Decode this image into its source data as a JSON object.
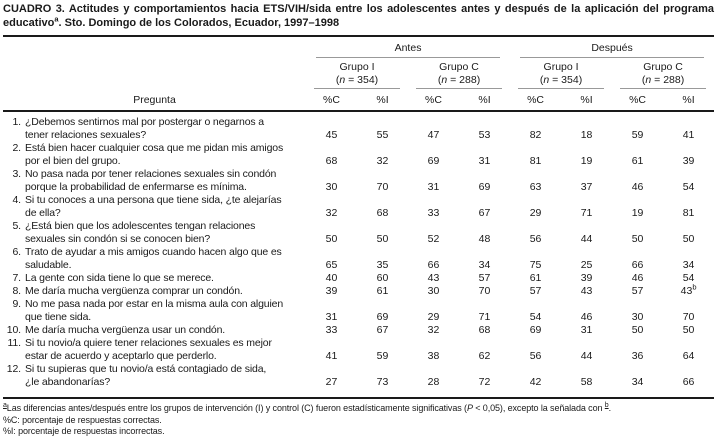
{
  "title": {
    "line1": "CUADRO 3. Actitudes y comportamientos hacia ETS/VIH/sida entre los adolescentes antes y después de la aplicación del programa",
    "line2_pre": "educativo",
    "line2_sup": "a",
    "line2_rest": ". Sto. Domingo de los Colorados, Ecuador, 1997–1998"
  },
  "table": {
    "question_header": "Pregunta",
    "measure_labels": [
      "%C",
      "%I"
    ],
    "period_groups": [
      {
        "label": "Antes",
        "groups": [
          {
            "name": "Grupo I",
            "n_pre": "(",
            "n_var": "n",
            "n_post": " = 354)"
          },
          {
            "name": "Grupo C",
            "n_pre": "(",
            "n_var": "n",
            "n_post": " = 288)"
          }
        ]
      },
      {
        "label": "Después",
        "groups": [
          {
            "name": "Grupo I",
            "n_pre": "(",
            "n_var": "n",
            "n_post": " = 354)"
          },
          {
            "name": "Grupo C",
            "n_pre": "(",
            "n_var": "n",
            "n_post": " = 288)"
          }
        ]
      }
    ],
    "rows": [
      {
        "num": "1.",
        "lines": [
          "¿Debemos sentirnos mal por postergar o negarnos a",
          "tener relaciones sexuales?"
        ],
        "values": [
          "45",
          "55",
          "47",
          "53",
          "82",
          "18",
          "59",
          "41"
        ]
      },
      {
        "num": "2.",
        "lines": [
          "Está bien hacer cualquier cosa que me pidan mis amigos",
          "por el bien del grupo."
        ],
        "values": [
          "68",
          "32",
          "69",
          "31",
          "81",
          "19",
          "61",
          "39"
        ]
      },
      {
        "num": "3.",
        "lines": [
          "No pasa nada por tener relaciones sexuales sin condón",
          "porque la probabilidad de enfermarse es mínima."
        ],
        "values": [
          "30",
          "70",
          "31",
          "69",
          "63",
          "37",
          "46",
          "54"
        ]
      },
      {
        "num": "4.",
        "lines": [
          "Si tu conoces a una persona que tiene sida, ¿te alejarías",
          "de ella?"
        ],
        "values": [
          "32",
          "68",
          "33",
          "67",
          "29",
          "71",
          "19",
          "81"
        ]
      },
      {
        "num": "5.",
        "lines": [
          "¿Está bien que los adolescentes tengan relaciones",
          "sexuales sin condón si se conocen bien?"
        ],
        "values": [
          "50",
          "50",
          "52",
          "48",
          "56",
          "44",
          "50",
          "50"
        ]
      },
      {
        "num": "6.",
        "lines": [
          "Trato de ayudar a mis amigos cuando hacen algo que es",
          "saludable."
        ],
        "values": [
          "65",
          "35",
          "66",
          "34",
          "75",
          "25",
          "66",
          "34"
        ]
      },
      {
        "num": "7.",
        "lines": [
          "La gente con sida tiene lo que se merece."
        ],
        "values": [
          "40",
          "60",
          "43",
          "57",
          "61",
          "39",
          "46",
          "54"
        ]
      },
      {
        "num": "8.",
        "lines": [
          "Me daría mucha vergüenza comprar un condón."
        ],
        "values": [
          "39",
          "61",
          "30",
          "70",
          "57",
          "43",
          "57",
          {
            "text": "43",
            "sup": "b"
          }
        ]
      },
      {
        "num": "9.",
        "lines": [
          "No me pasa nada por estar en la misma aula con alguien",
          "que tiene sida."
        ],
        "values": [
          "31",
          "69",
          "29",
          "71",
          "54",
          "46",
          "30",
          "70"
        ]
      },
      {
        "num": "10.",
        "lines": [
          "Me daría mucha vergüenza usar un condón."
        ],
        "values": [
          "33",
          "67",
          "32",
          "68",
          "69",
          "31",
          "50",
          "50"
        ]
      },
      {
        "num": "11.",
        "lines": [
          "Si tu novio/a quiere tener relaciones sexuales es mejor",
          "estar de acuerdo y aceptarlo que perderlo."
        ],
        "values": [
          "41",
          "59",
          "38",
          "62",
          "56",
          "44",
          "36",
          "64"
        ]
      },
      {
        "num": "12.",
        "lines": [
          "Si tu supieras que tu novio/a está contagiado de sida,",
          "¿le abandonarías?"
        ],
        "values": [
          "27",
          "73",
          "28",
          "72",
          "42",
          "58",
          "34",
          "66"
        ]
      }
    ]
  },
  "footnotes": {
    "a": {
      "sup": "a",
      "part1": "Las diferencias antes/después entre los grupos de intervención (I) y control (C) fueron estadísticamente significativas (",
      "p_italic": "P",
      "part2": " < 0,05), excepto la señalada con ",
      "sup2": "b",
      "end": "."
    },
    "pc": "%C: porcentaje de respuestas correctas.",
    "pi": "%I: porcentaje de respuestas incorrectas."
  }
}
